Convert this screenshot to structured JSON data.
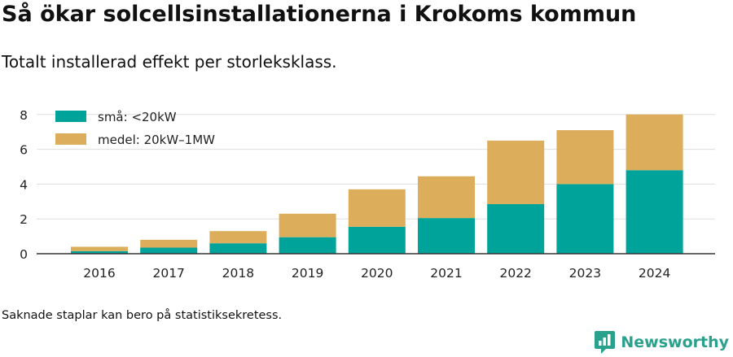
{
  "header": {
    "title": "Så ökar solcellsinstallationerna i Krokoms kommun",
    "subtitle": "Totalt installerad effekt per storleksklass."
  },
  "footer": {
    "note": "Saknade staplar kan bero på statistiksekretess.",
    "brand": "Newsworthy"
  },
  "icons": {
    "brand_logo": "newsworthy-logo-icon"
  },
  "colors": {
    "small": "#00a39a",
    "medium": "#dcae5c",
    "grid": "#dddddd",
    "axis": "#333333",
    "brand": "#2aa18c"
  },
  "chart_data": {
    "type": "bar",
    "stacked": true,
    "categories": [
      "2016",
      "2017",
      "2018",
      "2019",
      "2020",
      "2021",
      "2022",
      "2023",
      "2024"
    ],
    "series": [
      {
        "name": "små: <20kW",
        "values": [
          0.15,
          0.35,
          0.6,
          0.95,
          1.55,
          2.05,
          2.85,
          4.0,
          4.8
        ]
      },
      {
        "name": "medel: 20kW–1MW",
        "values": [
          0.25,
          0.45,
          0.7,
          1.35,
          2.15,
          2.4,
          3.65,
          3.1,
          3.2
        ]
      }
    ],
    "yticks": [
      0,
      2,
      4,
      6,
      8
    ],
    "ylim": [
      0,
      8.5
    ],
    "grid": true,
    "legend_position": "top-left"
  }
}
